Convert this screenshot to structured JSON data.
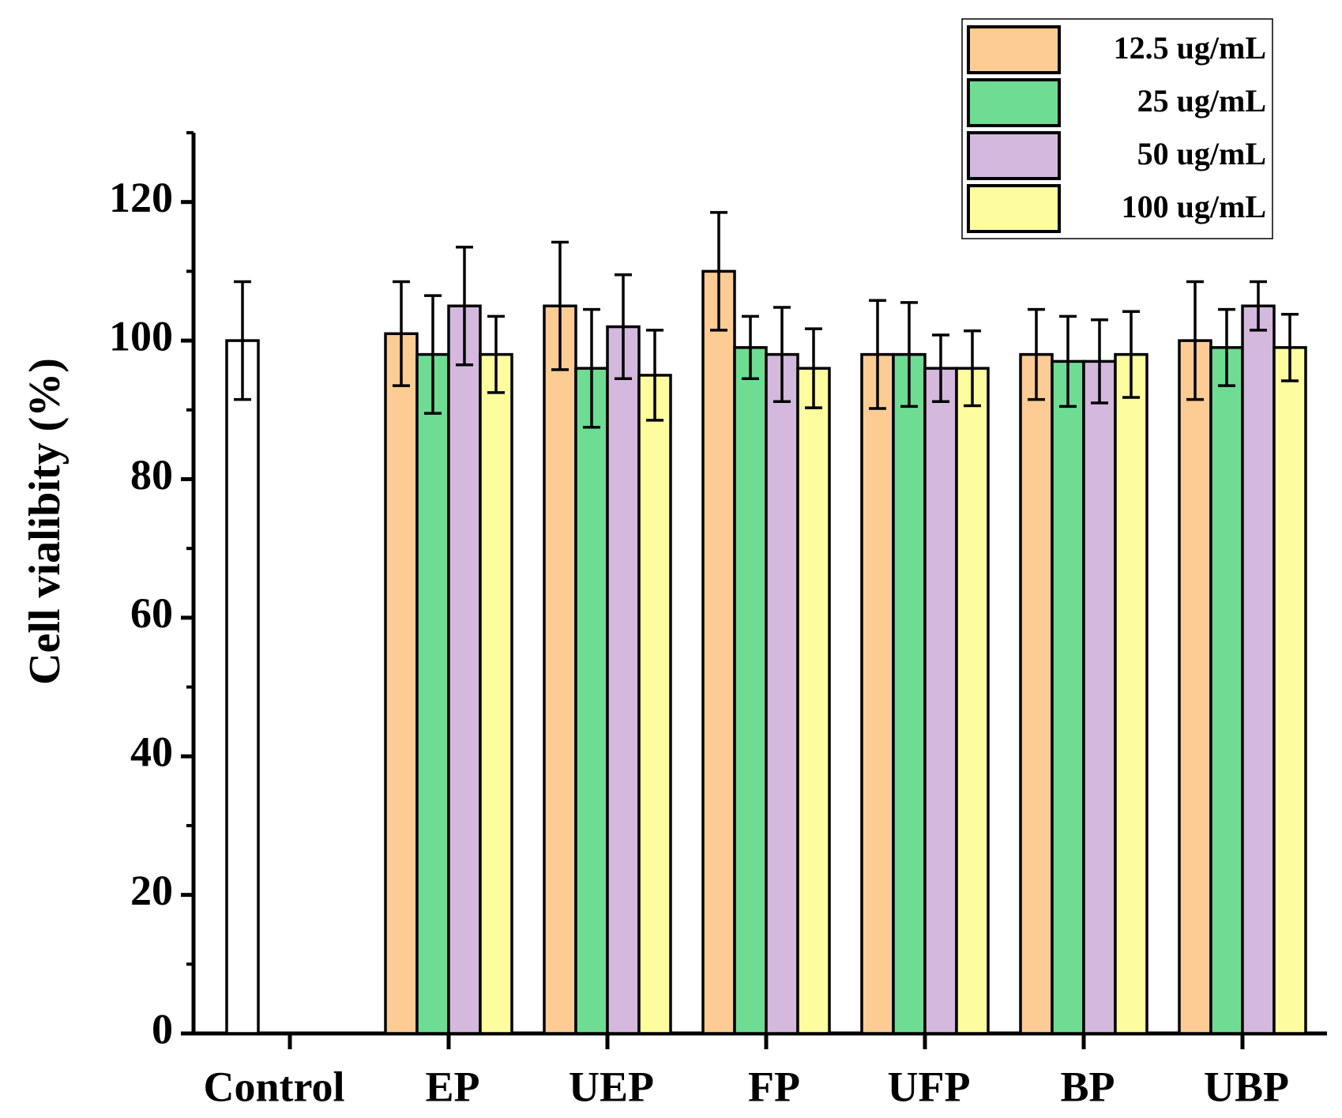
{
  "chart_data": {
    "type": "bar",
    "y_label": "Cell vialibity (%)",
    "categories": [
      "Control",
      "EP",
      "UEP",
      "FP",
      "UFP",
      "BP",
      "UBP"
    ],
    "control": {
      "value": 100,
      "error": 8.5,
      "color": "#ffffff"
    },
    "series": [
      {
        "name": "12.5 ug/mL",
        "color": "#fdcc95",
        "values": [
          null,
          101,
          105,
          110,
          98,
          98,
          100
        ],
        "errors": [
          null,
          7.5,
          9.2,
          8.5,
          7.8,
          6.5,
          8.5
        ]
      },
      {
        "name": "25 ug/mL",
        "color": "#6fdc94",
        "values": [
          null,
          98,
          96,
          99,
          98,
          97,
          99
        ],
        "errors": [
          null,
          8.5,
          8.5,
          4.5,
          7.5,
          6.5,
          5.5
        ]
      },
      {
        "name": "50 ug/mL",
        "color": "#d4b8de",
        "values": [
          null,
          105,
          102,
          98,
          96,
          97,
          105
        ],
        "errors": [
          null,
          8.5,
          7.5,
          6.8,
          4.8,
          6.0,
          3.5
        ]
      },
      {
        "name": "100 ug/mL",
        "color": "#fdfda0",
        "values": [
          null,
          98,
          95,
          96,
          96,
          98,
          99
        ],
        "errors": [
          null,
          5.5,
          6.5,
          5.7,
          5.4,
          6.2,
          4.8
        ]
      }
    ],
    "ylim": [
      0,
      130
    ],
    "yticks": [
      0,
      20,
      40,
      60,
      80,
      100,
      120
    ],
    "minor_yticks": [
      10,
      30,
      50,
      70,
      90,
      110,
      130
    ],
    "legend": "top-right"
  }
}
